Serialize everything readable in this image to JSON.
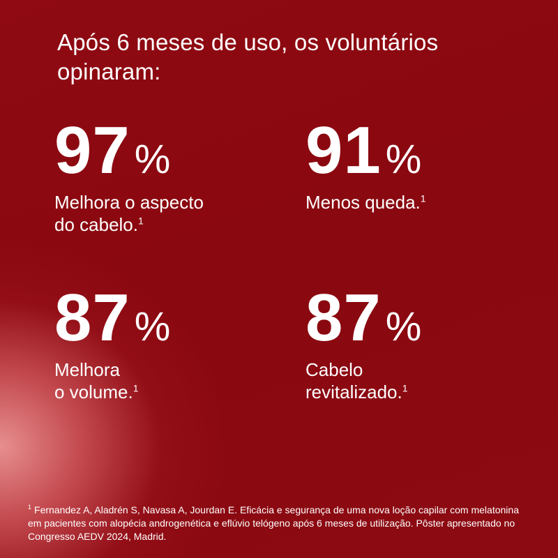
{
  "headline": "Após 6 meses de uso, os voluntários opinaram:",
  "stats": [
    {
      "number": "97",
      "percent": "%",
      "label_lines": [
        "Melhora o aspecto",
        "do cabelo."
      ],
      "superscript": "1"
    },
    {
      "number": "91",
      "percent": "%",
      "label_lines": [
        "Menos queda."
      ],
      "superscript": "1"
    },
    {
      "number": "87",
      "percent": "%",
      "label_lines": [
        "Melhora",
        "o volume."
      ],
      "superscript": "1"
    },
    {
      "number": "87",
      "percent": "%",
      "label_lines": [
        "Cabelo",
        "revitalizado."
      ],
      "superscript": "1"
    }
  ],
  "footnote": {
    "marker": "1",
    "text": "Fernandez A, Aladrén S, Navasa A, Jourdan E. Eficácia e segurança de uma nova loção capilar com melatonina em pacientes com alopécia androgenética e eflúvio telógeno após 6 meses de utilização. Pôster apresentado no Congresso AEDV 2024, Madrid."
  },
  "colors": {
    "background": "#8b0a11",
    "glow": "#e89494",
    "text": "#ffffff"
  }
}
